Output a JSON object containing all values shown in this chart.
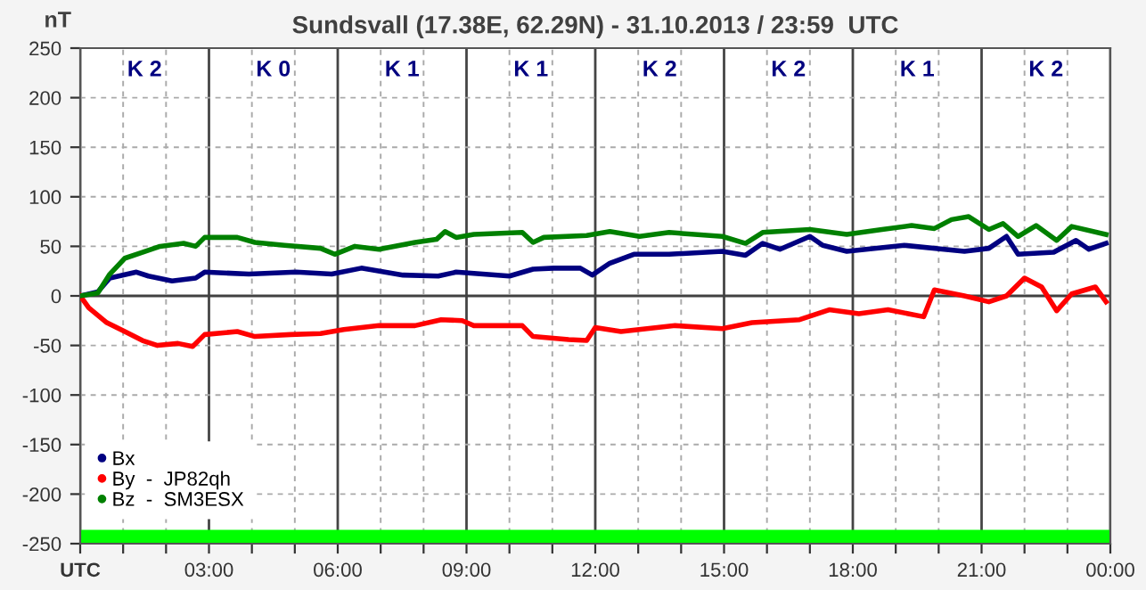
{
  "chart_data": {
    "type": "line",
    "title": "Sundsvall (17.38E, 62.29N) - 31.10.2013 / 23:59  UTC",
    "ylabel": "nT",
    "xlim": [
      0,
      24
    ],
    "ylim": [
      -250,
      250
    ],
    "xticks": [
      {
        "value": 0,
        "label": "UTC"
      },
      {
        "value": 1,
        "label": null
      },
      {
        "value": 2,
        "label": null
      },
      {
        "value": 3,
        "label": "03:00"
      },
      {
        "value": 4,
        "label": null
      },
      {
        "value": 5,
        "label": null
      },
      {
        "value": 6,
        "label": "06:00"
      },
      {
        "value": 7,
        "label": null
      },
      {
        "value": 8,
        "label": null
      },
      {
        "value": 9,
        "label": "09:00"
      },
      {
        "value": 10,
        "label": null
      },
      {
        "value": 11,
        "label": null
      },
      {
        "value": 12,
        "label": "12:00"
      },
      {
        "value": 13,
        "label": null
      },
      {
        "value": 14,
        "label": null
      },
      {
        "value": 15,
        "label": "15:00"
      },
      {
        "value": 16,
        "label": null
      },
      {
        "value": 17,
        "label": null
      },
      {
        "value": 18,
        "label": "18:00"
      },
      {
        "value": 19,
        "label": null
      },
      {
        "value": 20,
        "label": null
      },
      {
        "value": 21,
        "label": "21:00"
      },
      {
        "value": 22,
        "label": null
      },
      {
        "value": 23,
        "label": null
      },
      {
        "value": 24,
        "label": "00:00"
      }
    ],
    "yticks": [
      -250,
      -200,
      -150,
      -100,
      -50,
      0,
      50,
      100,
      150,
      200,
      250
    ],
    "grid": true,
    "legend": "bottom left",
    "line_style": "solid",
    "series": [
      {
        "name": "Bx",
        "color": "#000080",
        "x": [
          0,
          0.41,
          0.69,
          1.31,
          1.59,
          2.14,
          2.69,
          2.9,
          3.93,
          5.03,
          5.86,
          6.55,
          7.52,
          8.34,
          8.76,
          10,
          10.55,
          11.03,
          11.65,
          11.93,
          12.34,
          12.9,
          13.72,
          14.96,
          15.5,
          15.9,
          16.3,
          17,
          17.3,
          17.86,
          19.2,
          20.6,
          21.17,
          21.58,
          21.85,
          22.68,
          23.2,
          23.5,
          23.9
        ],
        "values": [
          0,
          4,
          18,
          24,
          20,
          15,
          18,
          24,
          22,
          24,
          22,
          28,
          21,
          20,
          24,
          20,
          27,
          28,
          28,
          21,
          33,
          42,
          42,
          45,
          41,
          53,
          47,
          60,
          51,
          45,
          51,
          45,
          48,
          60,
          42,
          44,
          56,
          47,
          53
        ]
      },
      {
        "name": "By  -  JP82qh",
        "color": "#ff0000",
        "x": [
          0,
          0.2,
          0.62,
          1.04,
          1.45,
          1.8,
          2.28,
          2.62,
          2.9,
          3.66,
          4.07,
          4.9,
          5.6,
          6.14,
          6.96,
          7.8,
          8.41,
          8.9,
          9.17,
          10.3,
          10.55,
          11.38,
          11.8,
          12,
          12.6,
          13.86,
          14.96,
          15.65,
          16.76,
          17.45,
          18.14,
          18.82,
          19.65,
          19.9,
          20.6,
          21.17,
          21.58,
          22,
          22.4,
          22.75,
          23.1,
          23.65,
          23.9
        ],
        "values": [
          0,
          -12,
          -27,
          -36,
          -45,
          -50,
          -48,
          -51,
          -39,
          -36,
          -41,
          -39,
          -38,
          -34,
          -30,
          -30,
          -24,
          -25,
          -30,
          -30,
          -41,
          -44,
          -45,
          -32,
          -36,
          -30,
          -33,
          -27,
          -24,
          -14,
          -18,
          -14,
          -21,
          6,
          0,
          -6,
          0,
          18,
          9,
          -15,
          2,
          9,
          -6
        ]
      },
      {
        "name": "Bz  -  SM3ESX",
        "color": "#008000",
        "x": [
          0,
          0.41,
          0.69,
          1.04,
          1.45,
          1.86,
          2.41,
          2.69,
          2.9,
          3.66,
          4.07,
          4.76,
          5.6,
          5.93,
          6.4,
          6.96,
          7.8,
          8.3,
          8.5,
          8.76,
          9.17,
          10.3,
          10.55,
          10.8,
          11.8,
          12.34,
          13.03,
          13.72,
          14.96,
          15.5,
          15.9,
          17,
          17.86,
          18.68,
          19.37,
          19.9,
          20.3,
          20.7,
          21.17,
          21.5,
          21.85,
          22.27,
          22.75,
          23.1,
          23.9
        ],
        "values": [
          0,
          3,
          22,
          38,
          44,
          50,
          53,
          50,
          59,
          59,
          54,
          51,
          48,
          42,
          50,
          47,
          54,
          57,
          65,
          59,
          62,
          64,
          54,
          59,
          61,
          65,
          60,
          64,
          60,
          53,
          64,
          67,
          62,
          67,
          71,
          68,
          77,
          80,
          67,
          73,
          60,
          71,
          56,
          70,
          62
        ]
      }
    ],
    "ref_lines": [
      {
        "axis": "y",
        "value": 0,
        "color": "#404040"
      }
    ],
    "bands": [
      {
        "axis": "y",
        "from": -250,
        "to": -236,
        "color": "#00ff00"
      }
    ],
    "annotations": [
      "K 2",
      "K 0",
      "K 1",
      "K 1",
      "K 2",
      "K 2",
      "K 1",
      "K 2"
    ]
  }
}
